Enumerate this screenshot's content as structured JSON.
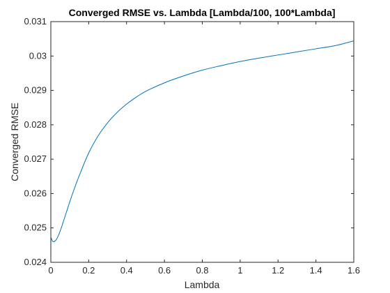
{
  "chart_data": {
    "type": "line",
    "title": "Converged RMSE vs. Lambda [Lambda/100, 100*Lambda]",
    "xlabel": "Lambda",
    "ylabel": "Converged RMSE",
    "xlim": [
      0,
      1.6
    ],
    "ylim": [
      0.024,
      0.031
    ],
    "x_ticks": [
      0,
      0.2,
      0.4,
      0.6,
      0.8,
      1.0,
      1.2,
      1.4,
      1.6
    ],
    "x_tick_labels": [
      "0",
      "0.2",
      "0.4",
      "0.6",
      "0.8",
      "1",
      "1.2",
      "1.4",
      "1.6"
    ],
    "y_ticks": [
      0.024,
      0.025,
      0.026,
      0.027,
      0.028,
      0.029,
      0.03,
      0.031
    ],
    "y_tick_labels": [
      "0.024",
      "0.025",
      "0.026",
      "0.027",
      "0.028",
      "0.029",
      "0.03",
      "0.031"
    ],
    "grid": false,
    "legend": "none",
    "series": [
      {
        "color": "#0072bd",
        "x": [
          0,
          0.005,
          0.01,
          0.015,
          0.02,
          0.03,
          0.04,
          0.05,
          0.06,
          0.08,
          0.1,
          0.12,
          0.15,
          0.2,
          0.25,
          0.3,
          0.35,
          0.4,
          0.45,
          0.5,
          0.6,
          0.7,
          0.8,
          0.9,
          1.0,
          1.1,
          1.2,
          1.3,
          1.4,
          1.5,
          1.6
        ],
        "y": [
          0.02475,
          0.02466,
          0.02461,
          0.0246,
          0.02461,
          0.02467,
          0.02478,
          0.02492,
          0.02508,
          0.02542,
          0.02576,
          0.02608,
          0.02652,
          0.02718,
          0.02768,
          0.02806,
          0.02836,
          0.0286,
          0.0288,
          0.02897,
          0.02922,
          0.02942,
          0.02959,
          0.02972,
          0.02984,
          0.02994,
          0.03003,
          0.03012,
          0.03021,
          0.0303,
          0.03044
        ]
      }
    ]
  }
}
